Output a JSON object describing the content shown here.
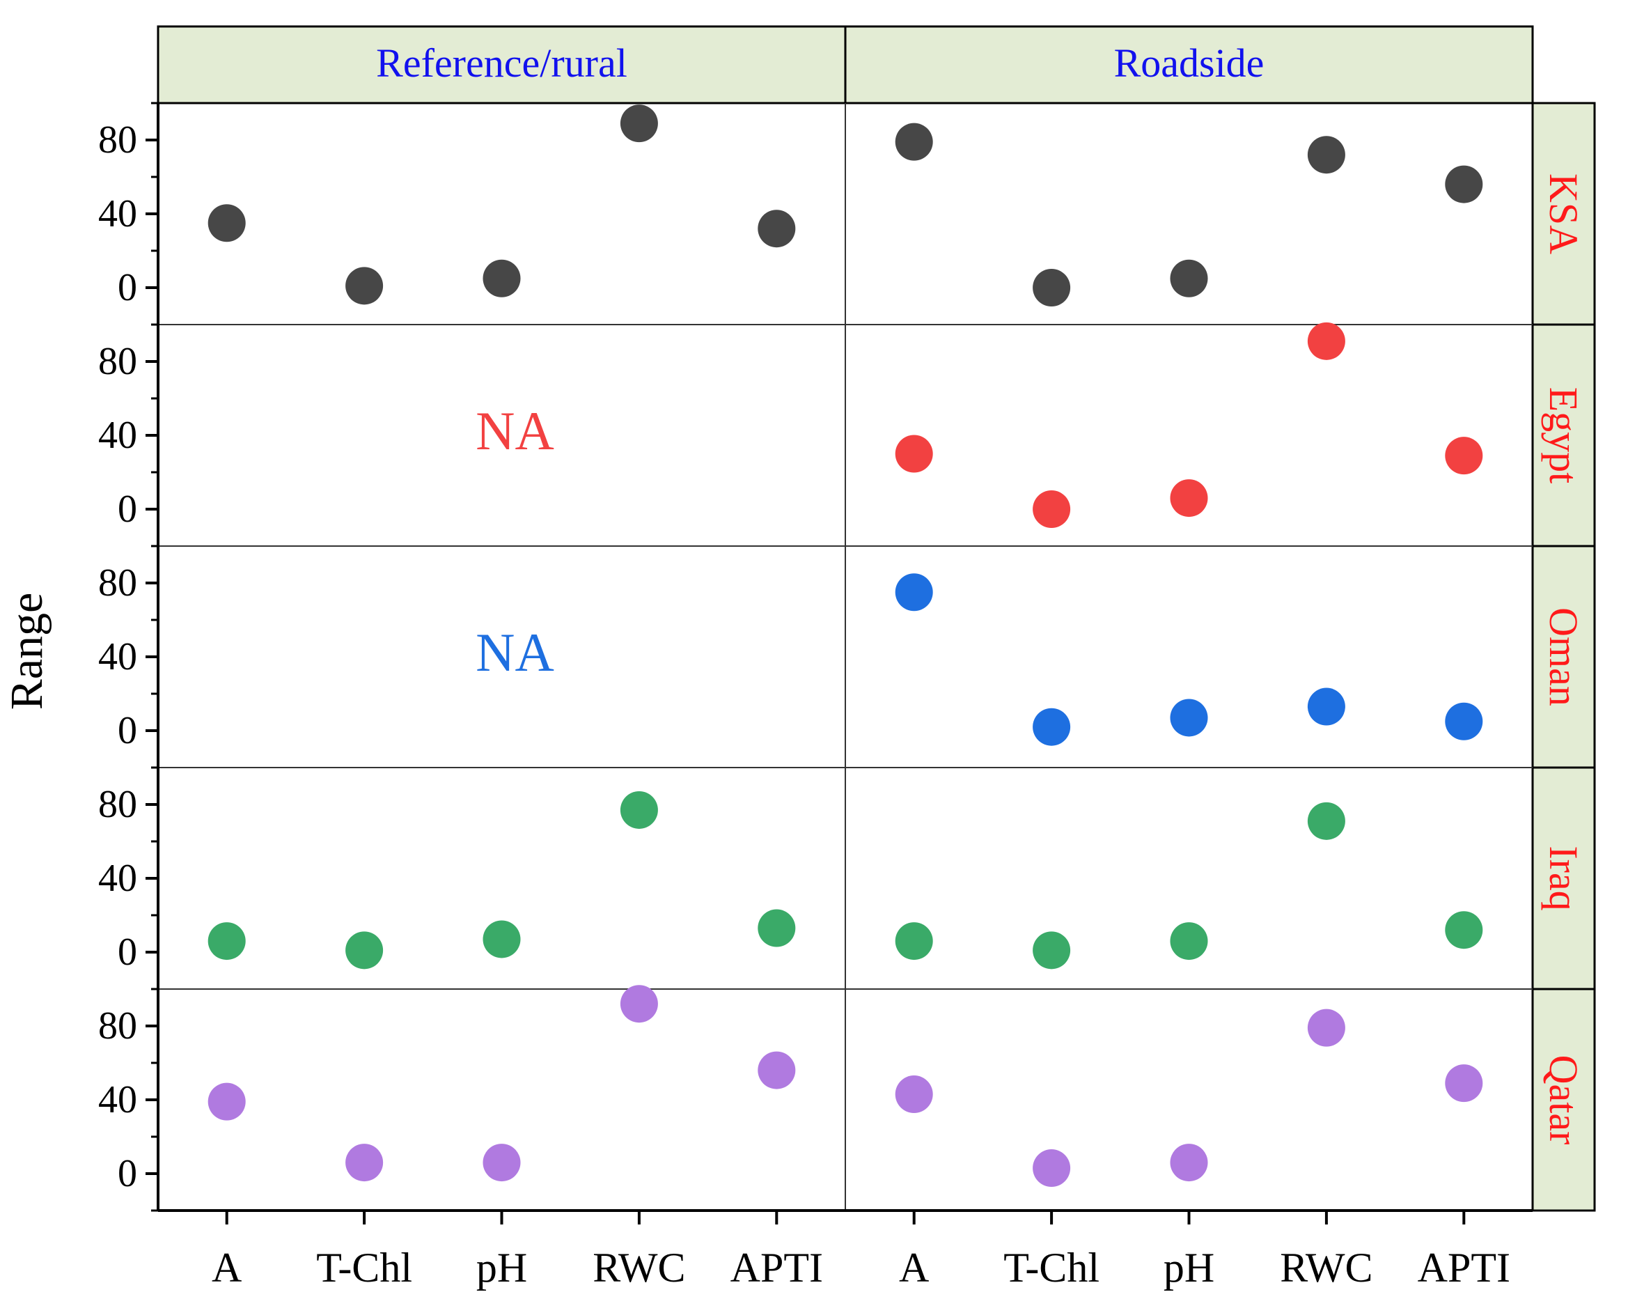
{
  "chart_data": {
    "type": "scatter",
    "ylabel": "Range",
    "ylim": [
      -20,
      100
    ],
    "yticks": [
      0,
      40,
      80
    ],
    "categories": [
      "A",
      "T-Chl",
      "pH",
      "RWC",
      "APTI"
    ],
    "columns": [
      "Reference/rural",
      "Roadside"
    ],
    "rows": [
      {
        "name": "KSA",
        "color": "#474747",
        "na_label": "",
        "reference": [
          35,
          1,
          5,
          89,
          32
        ],
        "roadside": [
          79,
          0,
          5,
          72,
          56
        ]
      },
      {
        "name": "Egypt",
        "color": "#f24141",
        "na_label": "NA",
        "reference": null,
        "roadside": [
          30,
          0,
          6,
          91,
          29
        ]
      },
      {
        "name": "Oman",
        "color": "#1e6fe0",
        "na_label": "NA",
        "reference": null,
        "roadside": [
          75,
          2,
          7,
          13,
          5
        ]
      },
      {
        "name": "Iraq",
        "color": "#3aaa68",
        "na_label": "",
        "reference": [
          6,
          1,
          7,
          77,
          13
        ],
        "roadside": [
          6,
          1,
          6,
          71,
          12
        ]
      },
      {
        "name": "Qatar",
        "color": "#b07ae0",
        "na_label": "",
        "reference": [
          39,
          6,
          6,
          92,
          56
        ],
        "roadside": [
          43,
          3,
          6,
          79,
          49
        ]
      }
    ],
    "strip_color": "#e3ecd4",
    "column_label_color": "#1111ee",
    "row_label_color": "#ff1a1a"
  }
}
